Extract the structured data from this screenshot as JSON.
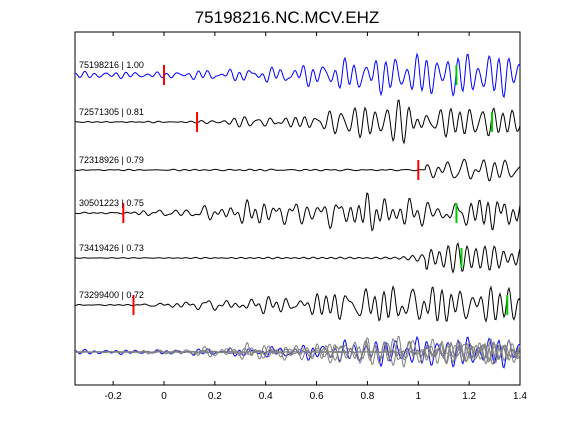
{
  "chart_data": {
    "type": "line",
    "title": "75198216.NC.MCV.EHZ",
    "xlabel": "",
    "ylabel": "",
    "xlim": [
      -0.35,
      1.4
    ],
    "x_ticks": [
      -0.2,
      0,
      0.2,
      0.4,
      0.6,
      0.8,
      1,
      1.2,
      1.4
    ],
    "x_tick_labels": [
      "-0.2",
      "0",
      "0.2",
      "0.4",
      "0.6",
      "0.8",
      "1",
      "1.2",
      "1.4"
    ],
    "grid": false,
    "colors": {
      "reference_trace": "#0000ff",
      "trace": "#000000",
      "stack_trace": "#808080",
      "p_pick": "#ff0000",
      "s_pick": "#00cc00"
    },
    "traces": [
      {
        "label": "75198216 | 1.00",
        "event_id": "75198216",
        "correlation": 1.0,
        "p_pick": 0.0,
        "s_pick": 1.15,
        "reference": true
      },
      {
        "label": "72571305 | 0.81",
        "event_id": "72571305",
        "correlation": 0.81,
        "p_pick": 0.13,
        "s_pick": 1.29
      },
      {
        "label": "72318926 | 0.79",
        "event_id": "72318926",
        "correlation": 0.79,
        "p_pick": 1.0,
        "s_pick": null
      },
      {
        "label": "30501223 | 0.75",
        "event_id": "30501223",
        "correlation": 0.75,
        "p_pick": -0.16,
        "s_pick": 1.15
      },
      {
        "label": "73419426 | 0.73",
        "event_id": "73419426",
        "correlation": 0.73,
        "p_pick": null,
        "s_pick": 1.17
      },
      {
        "label": "73299400 | 0.72",
        "event_id": "73299400",
        "correlation": 0.72,
        "p_pick": -0.12,
        "s_pick": 1.35
      }
    ]
  }
}
